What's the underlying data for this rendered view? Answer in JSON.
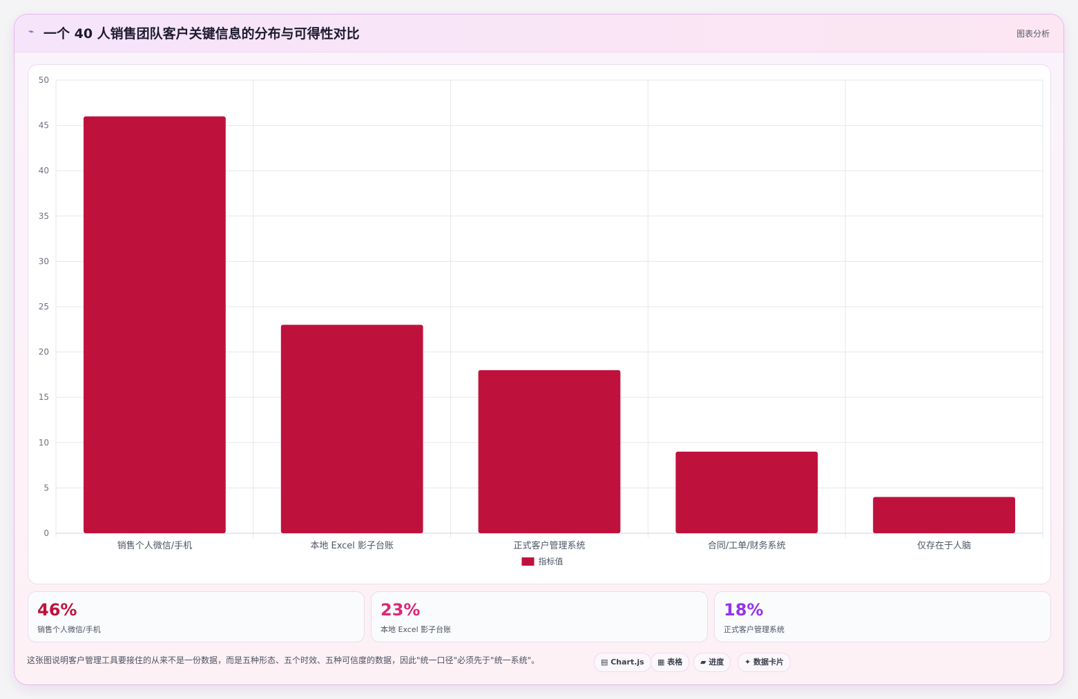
{
  "header": {
    "icon": "chart-line-icon",
    "title": "一个 40 人销售团队客户关键信息的分布与可得性对比",
    "tag": "图表分析"
  },
  "chart_data": {
    "type": "bar",
    "categories": [
      "销售个人微信/手机",
      "本地 Excel 影子台账",
      "正式客户管理系统",
      "合同/工单/财务系统",
      "仅存在于人脑"
    ],
    "series": [
      {
        "name": "指标值",
        "values": [
          46,
          23,
          18,
          9,
          4
        ],
        "color": "#be123c"
      }
    ],
    "ylim": [
      0,
      50
    ],
    "yticks": [
      0,
      5,
      10,
      15,
      20,
      25,
      30,
      35,
      40,
      45,
      50
    ],
    "grid": true,
    "legend": "bottom"
  },
  "stats": [
    {
      "value": "46%",
      "label": "销售个人微信/手机",
      "color": "#be123c"
    },
    {
      "value": "23%",
      "label": "本地 Excel 影子台账",
      "color": "#db2777"
    },
    {
      "value": "18%",
      "label": "正式客户管理系统",
      "color": "#9333ea"
    }
  ],
  "footer": {
    "note": "这张图说明客户管理工具要接住的从来不是一份数据，而是五种形态、五个时效、五种可信度的数据，因此\"统一口径\"必须先于\"统一系统\"。",
    "chips": [
      {
        "icon": "chart-icon",
        "label": "▤ Chart.js"
      },
      {
        "icon": "table-icon",
        "label": "▦ 表格"
      },
      {
        "icon": "progress-icon",
        "label": "▰ 进度"
      },
      {
        "icon": "card-icon",
        "label": "✦ 数据卡片"
      }
    ]
  }
}
